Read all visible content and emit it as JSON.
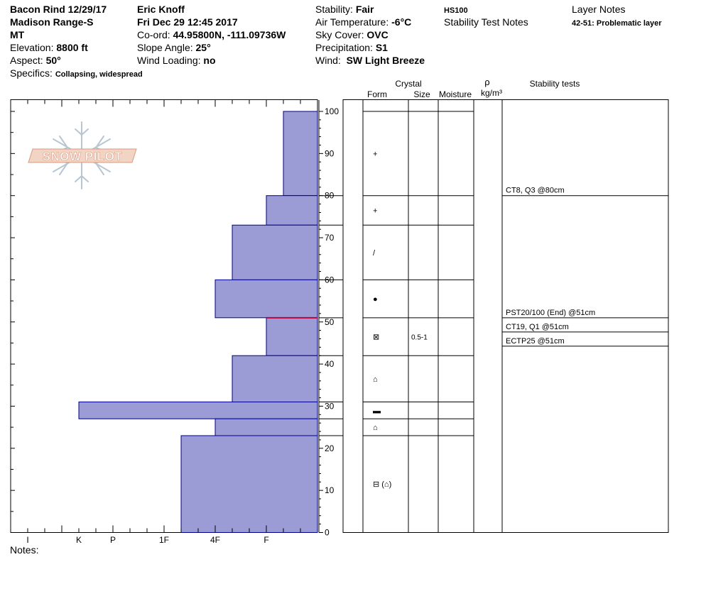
{
  "header": {
    "pit_name": "Bacon Rind 12/29/17",
    "range": "Madison Range-S",
    "state": "MT",
    "elevation_label": "Elevation:",
    "elevation_value": "8800 ft",
    "aspect_label": "Aspect:",
    "aspect_value": "50°",
    "specifics_label": "Specifics:",
    "specifics_value": "Collapsing, widespread",
    "observer": "Eric Knoff",
    "datetime": "Fri Dec 29 12:45 2017",
    "coord_label": "Co-ord:",
    "coord_value": "44.95800N, -111.09736W",
    "slope_label": "Slope Angle:",
    "slope_value": "25°",
    "wind_loading_label": "Wind Loading:",
    "wind_loading_value": "no",
    "stability_label": "Stability:",
    "stability_value": "Fair",
    "air_temp_label": "Air Temperature:",
    "air_temp_value": "-6°C",
    "sky_label": "Sky Cover:",
    "sky_value": "OVC",
    "precip_label": "Precipitation:",
    "precip_value": "S1",
    "wind_label": "Wind:",
    "wind_value": "SW Light Breeze",
    "hs_label": "HS100",
    "stability_notes_label": "Stability Test Notes",
    "layer_notes_label": "Layer Notes",
    "layer_note": "42-51: Problematic layer"
  },
  "logo_text": "SNOW PILOT",
  "notes_label": "Notes:",
  "columns": {
    "crystal": "Crystal",
    "form": "Form",
    "size": "Size",
    "moisture": "Moisture",
    "rho": "ρ",
    "density_unit": "kg/m³",
    "stability_tests": "Stability tests"
  },
  "colors": {
    "layer_fill": "#9b9bd6",
    "layer_edge": "#00008b",
    "weak_layer_line": "#c0003c"
  },
  "chart_data": {
    "type": "bar",
    "orientation": "horizontal",
    "y_axis": {
      "min": 0,
      "max": 100,
      "ticks": [
        "0",
        "10",
        "20",
        "30",
        "40",
        "50",
        "60",
        "70",
        "80",
        "90",
        "100"
      ]
    },
    "hardness_scale": [
      "I",
      "K",
      "P",
      "1F",
      "4F",
      "F"
    ],
    "hardness_scale_positions": {
      "I": 1,
      "K": 4,
      "P": 6,
      "1F": 9,
      "4F": 12,
      "F": 15
    },
    "hardness_axis_max": 18,
    "layers": [
      {
        "bottom": 80,
        "top": 100,
        "hardness": 2,
        "form": "+",
        "size": ""
      },
      {
        "bottom": 73,
        "top": 80,
        "hardness": 3,
        "form": "+",
        "size": ""
      },
      {
        "bottom": 60,
        "top": 73,
        "hardness": 5,
        "form": "/",
        "size": ""
      },
      {
        "bottom": 51,
        "top": 60,
        "hardness": 6,
        "form": "●",
        "size": ""
      },
      {
        "bottom": 42,
        "top": 51,
        "hardness": 3,
        "form": "⊠",
        "size": "0.5-1"
      },
      {
        "bottom": 31,
        "top": 42,
        "hardness": 5,
        "form": "⌂",
        "size": ""
      },
      {
        "bottom": 27,
        "top": 31,
        "hardness": 14,
        "form": "▬",
        "size": ""
      },
      {
        "bottom": 23,
        "top": 27,
        "hardness": 6,
        "form": "⌂",
        "size": ""
      },
      {
        "bottom": 0,
        "top": 23,
        "hardness": 8,
        "form": "⊟ (⌂)",
        "size": ""
      }
    ],
    "weak_layer_depth": 51,
    "stability_tests": [
      {
        "text": "CT8, Q3 @80cm",
        "depth": 80
      },
      {
        "text": "PST20/100 (End) @51cm",
        "depth": 51
      },
      {
        "text": "CT19, Q1 @51cm",
        "depth": 51
      },
      {
        "text": "ECTP25 @51cm",
        "depth": 51
      }
    ]
  }
}
